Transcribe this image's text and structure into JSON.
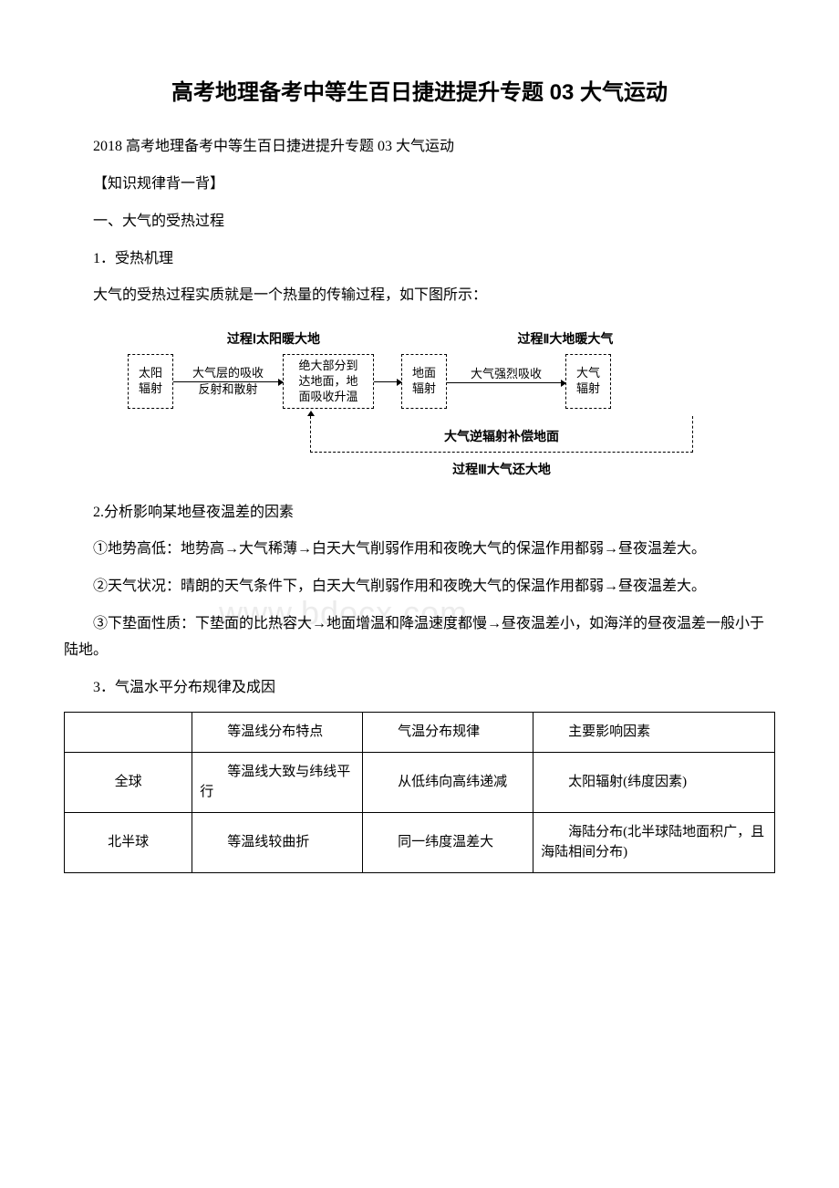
{
  "title": "高考地理备考中等生百日捷进提升专题 03 大气运动",
  "subtitle": "2018 高考地理备考中等生百日捷进提升专题 03 大气运动",
  "section_knowledge": "【知识规律背一背】",
  "section_1": "一、大气的受热过程",
  "section_1_1": "1．受热机理",
  "section_1_1_desc": "大气的受热过程实质就是一个热量的传输过程，如下图所示：",
  "diagram": {
    "header_left": "过程Ⅰ太阳暖大地",
    "header_right": "过程Ⅱ大地暖大气",
    "box_sun": "太阳\n辐射",
    "flow_absorb": "大气层的吸收",
    "flow_reflect": "反射和散射",
    "box_reach": "绝大部分到\n达地面，地\n面吸收升温",
    "box_ground_rad": "地面\n辐射",
    "flow_strong": "大气强烈吸收",
    "box_atmo_rad": "大气\n辐射",
    "back_label": "大气逆辐射补偿地面",
    "back_caption": "过程Ⅲ大气还大地"
  },
  "section_1_2": "2.分析影响某地昼夜温差的因素",
  "factor_1": "①地势高低：地势高→大气稀薄→白天大气削弱作用和夜晚大气的保温作用都弱→昼夜温差大。",
  "factor_2": "②天气状况：晴朗的天气条件下，白天大气削弱作用和夜晚大气的保温作用都弱→昼夜温差大。",
  "factor_3": "③下垫面性质：下垫面的比热容大→地面增温和降温速度都慢→昼夜温差小，如海洋的昼夜温差一般小于陆地。",
  "section_1_3": "3．气温水平分布规律及成因",
  "watermark": "www.bdocx.com",
  "table": {
    "headers": [
      "",
      "等温线分布特点",
      "气温分布规律",
      "主要影响因素"
    ],
    "rows": [
      [
        "全球",
        "等温线大致与纬线平行",
        "从低纬向高纬递减",
        "太阳辐射(纬度因素)"
      ],
      [
        "北半球",
        "等温线较曲折",
        "同一纬度温差大",
        "海陆分布(北半球陆地面积广，且海陆相间分布)"
      ]
    ],
    "col_widths": [
      "18%",
      "24%",
      "24%",
      "34%"
    ]
  }
}
